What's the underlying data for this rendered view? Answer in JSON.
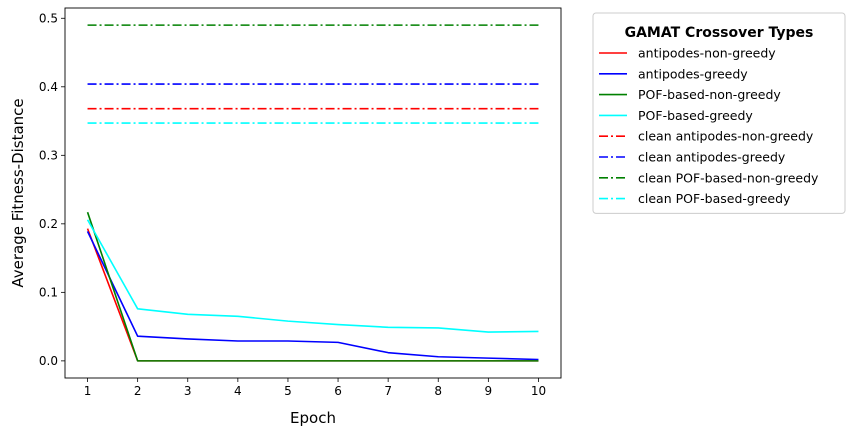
{
  "chart_data": {
    "type": "line",
    "xlabel": "Epoch",
    "ylabel": "Average Fitness-Distance",
    "x": [
      1,
      2,
      3,
      4,
      5,
      6,
      7,
      8,
      9,
      10
    ],
    "xticks": [
      "1",
      "2",
      "3",
      "4",
      "5",
      "6",
      "7",
      "8",
      "9",
      "10"
    ],
    "yticks": [
      "0.0",
      "0.1",
      "0.2",
      "0.3",
      "0.4",
      "0.5"
    ],
    "xlim": [
      0.55,
      10.45
    ],
    "ylim": [
      -0.025,
      0.515
    ],
    "grid": false,
    "legend": {
      "title": "GAMAT Crossover Types",
      "placement": "outside-right-top"
    },
    "series": [
      {
        "name": "antipodes-non-greedy",
        "color": "#ff0000",
        "style": "solid",
        "values": [
          0.193,
          0.0,
          0.0,
          0.0,
          0.0,
          0.0,
          0.0,
          0.0,
          0.0,
          0.0
        ]
      },
      {
        "name": "antipodes-greedy",
        "color": "#0000ff",
        "style": "solid",
        "values": [
          0.189,
          0.036,
          0.032,
          0.029,
          0.029,
          0.027,
          0.012,
          0.006,
          0.004,
          0.002
        ]
      },
      {
        "name": "POF-based-non-greedy",
        "color": "#008000",
        "style": "solid",
        "values": [
          0.217,
          0.0,
          0.0,
          0.0,
          0.0,
          0.0,
          0.0,
          0.0,
          0.0,
          0.0
        ]
      },
      {
        "name": "POF-based-greedy",
        "color": "#00ffff",
        "style": "solid",
        "values": [
          0.206,
          0.076,
          0.068,
          0.065,
          0.058,
          0.053,
          0.049,
          0.048,
          0.042,
          0.043
        ]
      },
      {
        "name": "clean antipodes-non-greedy",
        "color": "#ff0000",
        "style": "dashdot",
        "values": [
          0.368,
          0.368,
          0.368,
          0.368,
          0.368,
          0.368,
          0.368,
          0.368,
          0.368,
          0.368
        ]
      },
      {
        "name": "clean antipodes-greedy",
        "color": "#0000ff",
        "style": "dashdot",
        "values": [
          0.404,
          0.404,
          0.404,
          0.404,
          0.404,
          0.404,
          0.404,
          0.404,
          0.404,
          0.404
        ]
      },
      {
        "name": "clean POF-based-non-greedy",
        "color": "#008000",
        "style": "dashdot",
        "values": [
          0.49,
          0.49,
          0.49,
          0.49,
          0.49,
          0.49,
          0.49,
          0.49,
          0.49,
          0.49
        ]
      },
      {
        "name": "clean POF-based-greedy",
        "color": "#00ffff",
        "style": "dashdot",
        "values": [
          0.347,
          0.347,
          0.347,
          0.347,
          0.347,
          0.347,
          0.347,
          0.347,
          0.347,
          0.347
        ]
      }
    ]
  }
}
